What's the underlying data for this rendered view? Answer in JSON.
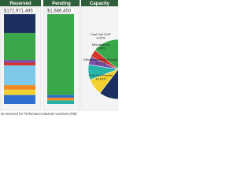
{
  "chart_data": [
    {
      "type": "stacked-bar",
      "title": "Reserved",
      "subtitle": "$172,971,495",
      "categories": [
        null
      ],
      "series": [
        {
          "color": "#2f6fd0",
          "values": [
            10
          ]
        },
        {
          "color": "#f2d230",
          "values": [
            6
          ]
        },
        {
          "color": "#f08a24",
          "values": [
            5
          ]
        },
        {
          "color": "#7ec8e8",
          "values": [
            22
          ]
        },
        {
          "color": "#d9332b",
          "values": [
            3
          ]
        },
        {
          "color": "#7b4fa8",
          "values": [
            3
          ]
        },
        {
          "color": "#3aa84a",
          "values": [
            30
          ]
        },
        {
          "color": "#1c2f5e",
          "values": [
            21
          ]
        }
      ]
    },
    {
      "type": "stacked-bar",
      "title": "Pending",
      "subtitle": "$1,686,450",
      "categories": [
        null
      ],
      "series": [
        {
          "color": "#27b3a8",
          "values": [
            4
          ]
        },
        {
          "color": "#f08a24",
          "values": [
            3
          ]
        },
        {
          "color": "#2f6fd0",
          "values": [
            3
          ]
        },
        {
          "color": "#3aa84a",
          "values": [
            90
          ]
        }
      ]
    },
    {
      "type": "pie",
      "title": "Capacity",
      "categories": [
        "Fuel Cell CHP",
        "Microturbine",
        "Electrochemical Storage",
        "Fuel Cell Electric",
        null,
        null,
        null
      ],
      "values": [
        4.47,
        4.04,
        14.71,
        14.61,
        45,
        9,
        8.17
      ],
      "value_labels": [
        "4.47%",
        "4.04%",
        "14.71%",
        "14.61%",
        null,
        null,
        null
      ],
      "colors": [
        "#7b4fa8",
        "#d9332b",
        "#3aa84a",
        "#2f6fd0",
        "#1c2f5e",
        "#f2d230",
        "#27b3a8"
      ]
    }
  ],
  "footnote": "ds reserved for Performance Based Incentives (PBI)"
}
